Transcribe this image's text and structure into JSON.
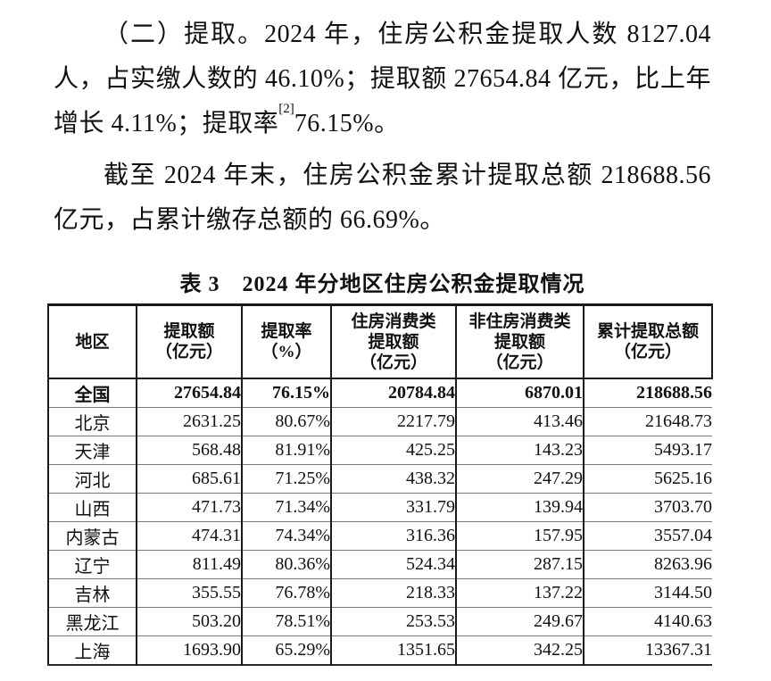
{
  "paragraphs": {
    "p1_line1": "（二）提取。2024 年，住房公积金提取人数 8127.04 万",
    "p1_line2": "人，占实缴人数的 46.10%；提取额 27654.84 亿元，比上年",
    "p1_line3_prefix": "增长 4.11%；提取率",
    "p1_line3_sup": "[2]",
    "p1_line3_suffix": "76.15%。",
    "p2_line1": "截至 2024 年末，住房公积金累计提取总额 218688.56",
    "p2_line2": "亿元，占累计缴存总额的 66.69%。"
  },
  "table": {
    "title": "表 3　2024 年分地区住房公积金提取情况",
    "headers": [
      "地区",
      "提取额\n（亿元）",
      "提取率\n（%）",
      "住房消费类\n提取额\n（亿元）",
      "非住房消费类\n提取额\n（亿元）",
      "累计提取总额\n（亿元）"
    ],
    "rows": [
      {
        "bold": true,
        "cells": [
          "全国",
          "27654.84",
          "76.15%",
          "20784.84",
          "6870.01",
          "218688.56"
        ]
      },
      {
        "bold": false,
        "cells": [
          "北京",
          "2631.25",
          "80.67%",
          "2217.79",
          "413.46",
          "21648.73"
        ]
      },
      {
        "bold": false,
        "cells": [
          "天津",
          "568.48",
          "81.91%",
          "425.25",
          "143.23",
          "5493.17"
        ]
      },
      {
        "bold": false,
        "cells": [
          "河北",
          "685.61",
          "71.25%",
          "438.32",
          "247.29",
          "5625.16"
        ]
      },
      {
        "bold": false,
        "cells": [
          "山西",
          "471.73",
          "71.34%",
          "331.79",
          "139.94",
          "3703.70"
        ]
      },
      {
        "bold": false,
        "cells": [
          "内蒙古",
          "474.31",
          "74.34%",
          "316.36",
          "157.95",
          "3557.04"
        ]
      },
      {
        "bold": false,
        "cells": [
          "辽宁",
          "811.49",
          "80.36%",
          "524.34",
          "287.15",
          "8263.96"
        ]
      },
      {
        "bold": false,
        "cells": [
          "吉林",
          "355.55",
          "76.78%",
          "218.33",
          "137.22",
          "3144.50"
        ]
      },
      {
        "bold": false,
        "cells": [
          "黑龙江",
          "503.20",
          "78.51%",
          "253.53",
          "249.67",
          "4140.63"
        ]
      },
      {
        "bold": false,
        "cells": [
          "上海",
          "1693.90",
          "65.29%",
          "1351.65",
          "342.25",
          "13367.31"
        ]
      }
    ]
  }
}
